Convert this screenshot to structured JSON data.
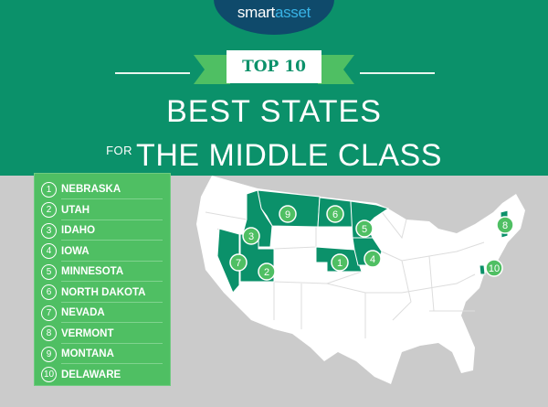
{
  "brand": {
    "name_part1": "smart",
    "name_part2": "asset"
  },
  "header": {
    "badge": "TOP 10",
    "title_line1": "BEST STATES",
    "title_prefix": "FOR",
    "title_line2": "THE MIDDLE CLASS"
  },
  "colors": {
    "header_bg": "#0b916a",
    "list_bg": "#4fbf63",
    "highlight_state": "#0b916a",
    "marker": "#4fbf63",
    "background": "#cbcbcb"
  },
  "rankings": [
    {
      "rank": "1",
      "state": "NEBRASKA"
    },
    {
      "rank": "2",
      "state": "UTAH"
    },
    {
      "rank": "3",
      "state": "IDAHO"
    },
    {
      "rank": "4",
      "state": "IOWA"
    },
    {
      "rank": "5",
      "state": "MINNESOTA"
    },
    {
      "rank": "6",
      "state": "NORTH DAKOTA"
    },
    {
      "rank": "7",
      "state": "NEVADA"
    },
    {
      "rank": "8",
      "state": "VERMONT"
    },
    {
      "rank": "9",
      "state": "MONTANA"
    },
    {
      "rank": "10",
      "state": "DELAWARE"
    }
  ]
}
